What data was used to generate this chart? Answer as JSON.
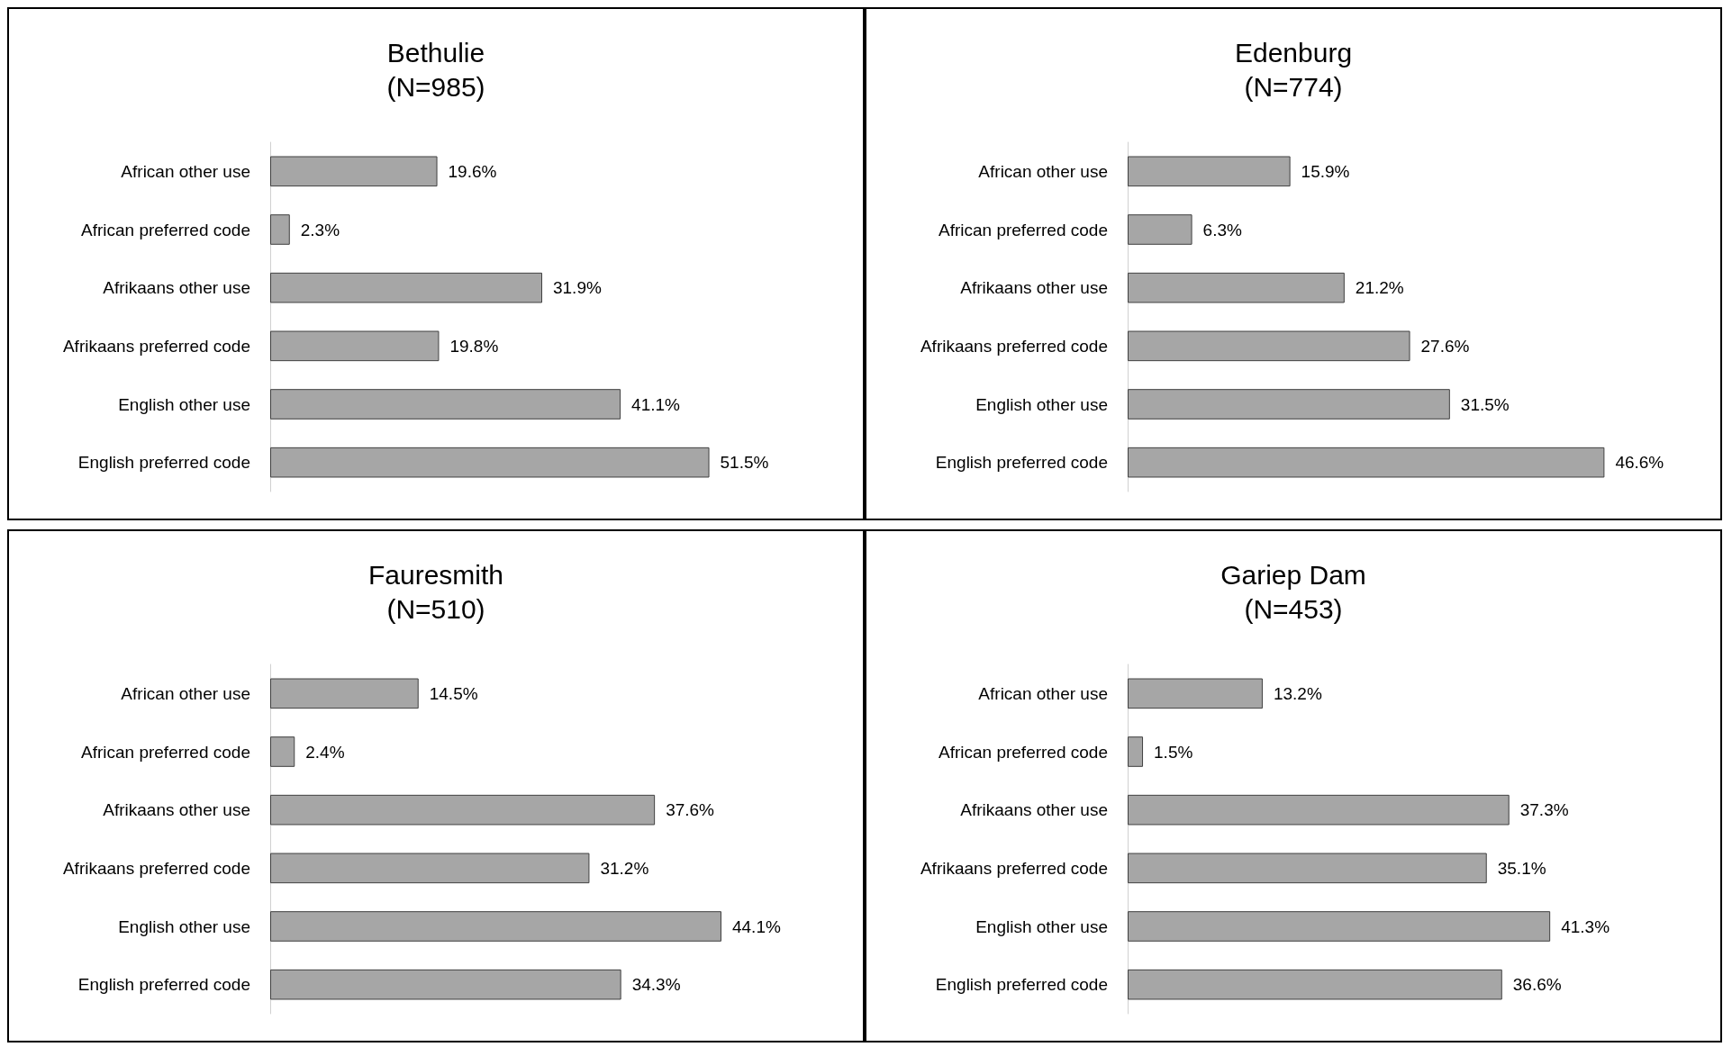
{
  "chart_data": [
    {
      "type": "bar",
      "orientation": "horizontal",
      "title": "Bethulie",
      "subtitle": "(N=985)",
      "categories": [
        "African other use",
        "African preferred code",
        "Afrikaans other use",
        "Afrikaans preferred code",
        "English other use",
        "English preferred code"
      ],
      "color": "#a6a6a6",
      "values": [
        19.6,
        2.3,
        31.9,
        19.8,
        41.1,
        51.5
      ],
      "value_labels": [
        "19.6%",
        "2.3%",
        "31.9%",
        "19.8%",
        "41.1%",
        "51.5%"
      ]
    },
    {
      "type": "bar",
      "orientation": "horizontal",
      "title": "Edenburg",
      "subtitle": "(N=774)",
      "categories": [
        "African other use",
        "African preferred code",
        "Afrikaans other use",
        "Afrikaans preferred code",
        "English other use",
        "English preferred code"
      ],
      "color": "#a6a6a6",
      "values": [
        15.9,
        6.3,
        21.2,
        27.6,
        31.5,
        46.6
      ],
      "value_labels": [
        "15.9%",
        "6.3%",
        "21.2%",
        "27.6%",
        "31.5%",
        "46.6%"
      ]
    },
    {
      "type": "bar",
      "orientation": "horizontal",
      "title": "Fauresmith",
      "subtitle": "(N=510)",
      "categories": [
        "African other use",
        "African preferred code",
        "Afrikaans other use",
        "Afrikaans preferred code",
        "English other use",
        "English preferred code"
      ],
      "color": "#a6a6a6",
      "values": [
        14.5,
        2.4,
        37.6,
        31.2,
        44.1,
        34.3
      ],
      "value_labels": [
        "14.5%",
        "2.4%",
        "37.6%",
        "31.2%",
        "44.1%",
        "34.3%"
      ]
    },
    {
      "type": "bar",
      "orientation": "horizontal",
      "title": "Gariep Dam",
      "subtitle": "(N=453)",
      "categories": [
        "African other use",
        "African preferred code",
        "Afrikaans other use",
        "Afrikaans preferred code",
        "English other use",
        "English preferred code"
      ],
      "color": "#a6a6a6",
      "values": [
        13.2,
        1.5,
        37.3,
        35.1,
        41.3,
        36.6
      ],
      "value_labels": [
        "13.2%",
        "1.5%",
        "37.3%",
        "35.1%",
        "41.3%",
        "36.6%"
      ]
    }
  ]
}
